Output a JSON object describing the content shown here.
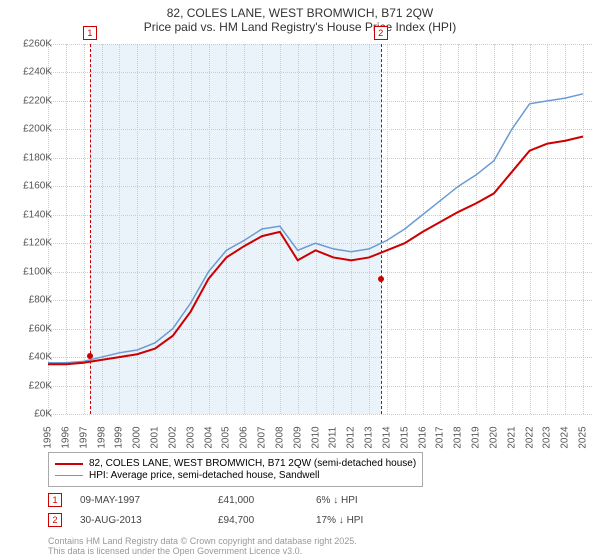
{
  "title": "82, COLES LANE, WEST BROMWICH, B71 2QW",
  "subtitle": "Price paid vs. HM Land Registry's House Price Index (HPI)",
  "chart": {
    "type": "line",
    "background_color": "#ffffff",
    "grid_color": "#cccccc",
    "shade_color": "#e0ecf7",
    "marker_color": "#cc0000",
    "series": [
      {
        "label": "82, COLES LANE, WEST BROMWICH, B71 2QW (semi-detached house)",
        "color": "#cc0000",
        "width": 2,
        "data": [
          [
            1995,
            35
          ],
          [
            1996,
            35
          ],
          [
            1997,
            36
          ],
          [
            1998,
            38
          ],
          [
            1999,
            40
          ],
          [
            2000,
            42
          ],
          [
            2001,
            46
          ],
          [
            2002,
            55
          ],
          [
            2003,
            72
          ],
          [
            2004,
            95
          ],
          [
            2005,
            110
          ],
          [
            2006,
            118
          ],
          [
            2007,
            125
          ],
          [
            2008,
            128
          ],
          [
            2009,
            108
          ],
          [
            2010,
            115
          ],
          [
            2011,
            110
          ],
          [
            2012,
            108
          ],
          [
            2013,
            110
          ],
          [
            2014,
            115
          ],
          [
            2015,
            120
          ],
          [
            2016,
            128
          ],
          [
            2017,
            135
          ],
          [
            2018,
            142
          ],
          [
            2019,
            148
          ],
          [
            2020,
            155
          ],
          [
            2021,
            170
          ],
          [
            2022,
            185
          ],
          [
            2023,
            190
          ],
          [
            2024,
            192
          ],
          [
            2025,
            195
          ]
        ]
      },
      {
        "label": "HPI: Average price, semi-detached house, Sandwell",
        "color": "#6b9bd1",
        "width": 1.5,
        "data": [
          [
            1995,
            36
          ],
          [
            1996,
            36
          ],
          [
            1997,
            37
          ],
          [
            1998,
            40
          ],
          [
            1999,
            43
          ],
          [
            2000,
            45
          ],
          [
            2001,
            50
          ],
          [
            2002,
            60
          ],
          [
            2003,
            78
          ],
          [
            2004,
            100
          ],
          [
            2005,
            115
          ],
          [
            2006,
            122
          ],
          [
            2007,
            130
          ],
          [
            2008,
            132
          ],
          [
            2009,
            115
          ],
          [
            2010,
            120
          ],
          [
            2011,
            116
          ],
          [
            2012,
            114
          ],
          [
            2013,
            116
          ],
          [
            2014,
            122
          ],
          [
            2015,
            130
          ],
          [
            2016,
            140
          ],
          [
            2017,
            150
          ],
          [
            2018,
            160
          ],
          [
            2019,
            168
          ],
          [
            2020,
            178
          ],
          [
            2021,
            200
          ],
          [
            2022,
            218
          ],
          [
            2023,
            220
          ],
          [
            2024,
            222
          ],
          [
            2025,
            225
          ]
        ]
      }
    ],
    "xlim": [
      1995,
      2025.5
    ],
    "ylim": [
      0,
      260
    ],
    "x_ticks": [
      1995,
      1996,
      1997,
      1998,
      1999,
      2000,
      2001,
      2002,
      2003,
      2004,
      2005,
      2006,
      2007,
      2008,
      2009,
      2010,
      2011,
      2012,
      2013,
      2014,
      2015,
      2016,
      2017,
      2018,
      2019,
      2020,
      2021,
      2022,
      2023,
      2024,
      2025
    ],
    "y_ticks": [
      0,
      20,
      40,
      60,
      80,
      100,
      120,
      140,
      160,
      180,
      200,
      220,
      240,
      260
    ],
    "y_prefix": "£",
    "y_suffix": "K",
    "shade_range": [
      1997.35,
      2013.66
    ],
    "markers": [
      {
        "n": "1",
        "x": 1997.35,
        "y": 41
      },
      {
        "n": "2",
        "x": 2013.66,
        "y": 94.7
      }
    ],
    "title_fontsize": 12,
    "label_fontsize": 10
  },
  "legend": {
    "series": [
      "82, COLES LANE, WEST BROMWICH, B71 2QW (semi-detached house)",
      "HPI: Average price, semi-detached house, Sandwell"
    ]
  },
  "sales": [
    {
      "n": "1",
      "date": "09-MAY-1997",
      "price": "£41,000",
      "delta": "6% ↓ HPI"
    },
    {
      "n": "2",
      "date": "30-AUG-2013",
      "price": "£94,700",
      "delta": "17% ↓ HPI"
    }
  ],
  "attribution": {
    "line1": "Contains HM Land Registry data © Crown copyright and database right 2025.",
    "line2": "This data is licensed under the Open Government Licence v3.0."
  }
}
